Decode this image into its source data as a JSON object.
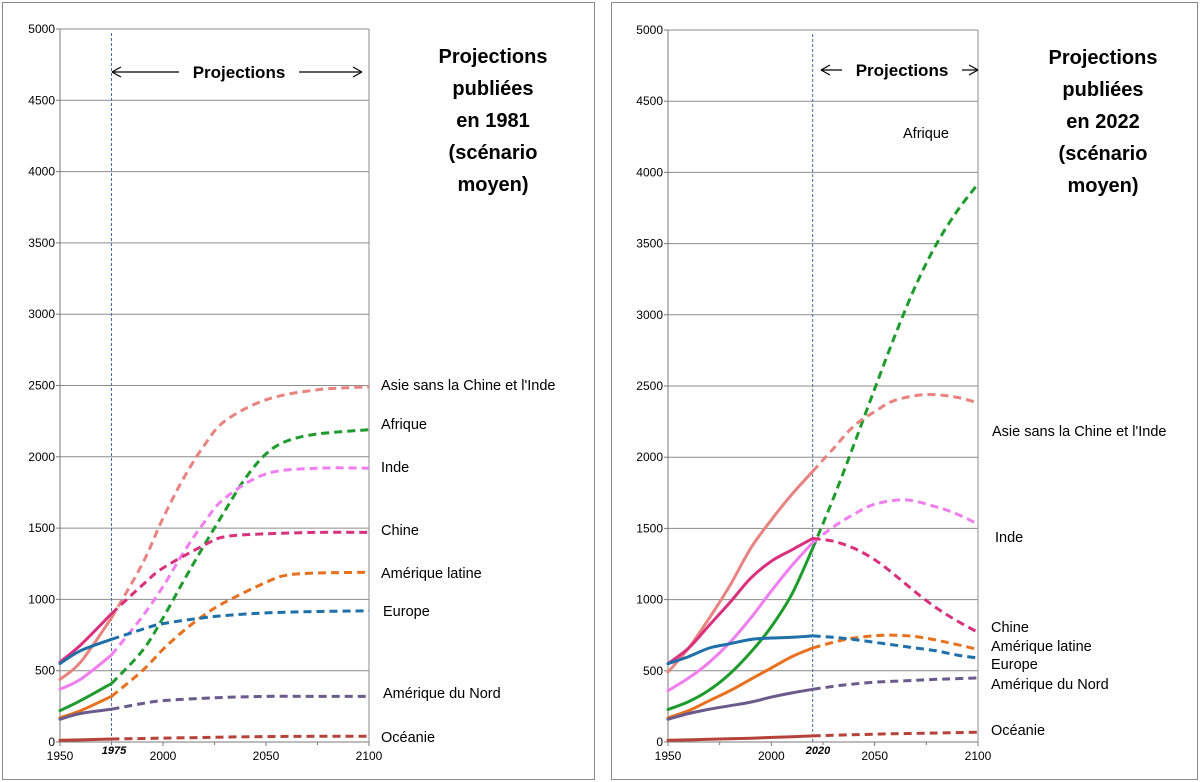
{
  "chart_data": [
    {
      "type": "line",
      "title": "Projections publiées en 1981 (scénario moyen)",
      "title_lines": [
        "Projections",
        "publiées",
        "en 1981",
        "(scénario",
        "moyen)"
      ],
      "projection_label": "Projections",
      "projection_start": 1975,
      "projection_start_label": "1975",
      "xlim": [
        1950,
        2100
      ],
      "ylim": [
        0,
        5000
      ],
      "x_ticks": [
        "1950",
        "2000",
        "2050",
        "2100"
      ],
      "y_ticks": [
        "0",
        "500",
        "1000",
        "1500",
        "2000",
        "2500",
        "3000",
        "3500",
        "4000",
        "4500",
        "5000"
      ],
      "grid": "horizontal",
      "series": [
        {
          "name": "Asie sans la Chine et l'Inde",
          "color": "#e8837f",
          "observed": [
            [
              1950,
              440
            ],
            [
              1960,
              560
            ],
            [
              1975,
              870
            ]
          ],
          "projected": [
            [
              1975,
              870
            ],
            [
              1990,
              1250
            ],
            [
              2000,
              1570
            ],
            [
              2010,
              1850
            ],
            [
              2020,
              2080
            ],
            [
              2030,
              2250
            ],
            [
              2050,
              2400
            ],
            [
              2075,
              2470
            ],
            [
              2100,
              2490
            ]
          ]
        },
        {
          "name": "Afrique",
          "color": "#1e9b2d",
          "observed": [
            [
              1950,
              220
            ],
            [
              1960,
              290
            ],
            [
              1975,
              410
            ]
          ],
          "projected": [
            [
              1975,
              410
            ],
            [
              1990,
              640
            ],
            [
              2000,
              870
            ],
            [
              2010,
              1130
            ],
            [
              2020,
              1380
            ],
            [
              2030,
              1620
            ],
            [
              2040,
              1850
            ],
            [
              2050,
              2020
            ],
            [
              2060,
              2110
            ],
            [
              2075,
              2160
            ],
            [
              2100,
              2190
            ]
          ]
        },
        {
          "name": "Inde",
          "color": "#f07ef0",
          "observed": [
            [
              1950,
              370
            ],
            [
              1960,
              440
            ],
            [
              1975,
              610
            ]
          ],
          "projected": [
            [
              1975,
              610
            ],
            [
              1990,
              880
            ],
            [
              2000,
              1090
            ],
            [
              2010,
              1330
            ],
            [
              2020,
              1540
            ],
            [
              2030,
              1710
            ],
            [
              2050,
              1880
            ],
            [
              2075,
              1920
            ],
            [
              2100,
              1920
            ]
          ]
        },
        {
          "name": "Chine",
          "color": "#d9317e",
          "observed": [
            [
              1950,
              560
            ],
            [
              1960,
              680
            ],
            [
              1975,
              900
            ]
          ],
          "projected": [
            [
              1975,
              900
            ],
            [
              1990,
              1100
            ],
            [
              2000,
              1220
            ],
            [
              2020,
              1380
            ],
            [
              2030,
              1440
            ],
            [
              2050,
              1460
            ],
            [
              2075,
              1470
            ],
            [
              2100,
              1470
            ]
          ]
        },
        {
          "name": "Amérique latine",
          "color": "#e8701e",
          "observed": [
            [
              1950,
              170
            ],
            [
              1960,
              220
            ],
            [
              1975,
              320
            ]
          ],
          "projected": [
            [
              1975,
              320
            ],
            [
              1990,
              500
            ],
            [
              2000,
              650
            ],
            [
              2010,
              780
            ],
            [
              2020,
              890
            ],
            [
              2030,
              980
            ],
            [
              2050,
              1120
            ],
            [
              2060,
              1170
            ],
            [
              2075,
              1185
            ],
            [
              2100,
              1190
            ]
          ]
        },
        {
          "name": "Europe",
          "color": "#1f6fa8",
          "observed": [
            [
              1950,
              550
            ],
            [
              1960,
              640
            ],
            [
              1975,
              720
            ]
          ],
          "projected": [
            [
              1975,
              720
            ],
            [
              1990,
              790
            ],
            [
              2000,
              830
            ],
            [
              2025,
              880
            ],
            [
              2050,
              905
            ],
            [
              2075,
              915
            ],
            [
              2100,
              920
            ]
          ]
        },
        {
          "name": "Amérique du Nord",
          "color": "#6b5a8c",
          "observed": [
            [
              1950,
              160
            ],
            [
              1960,
              200
            ],
            [
              1975,
              230
            ]
          ],
          "projected": [
            [
              1975,
              230
            ],
            [
              1990,
              270
            ],
            [
              2000,
              290
            ],
            [
              2025,
              310
            ],
            [
              2050,
              320
            ],
            [
              2075,
              320
            ],
            [
              2100,
              320
            ]
          ]
        },
        {
          "name": "Océanie",
          "color": "#b5433a",
          "observed": [
            [
              1950,
              12
            ],
            [
              1960,
              15
            ],
            [
              1975,
              21
            ]
          ],
          "projected": [
            [
              1975,
              21
            ],
            [
              2000,
              27
            ],
            [
              2025,
              33
            ],
            [
              2050,
              38
            ],
            [
              2075,
              40
            ],
            [
              2100,
              40
            ]
          ]
        }
      ]
    },
    {
      "type": "line",
      "title": "Projections publiées en 2022 (scénario moyen)",
      "title_lines": [
        "Projections",
        "publiées",
        "en 2022",
        "(scénario",
        "moyen)"
      ],
      "projection_label": "Projections",
      "projection_start": 2020,
      "projection_start_label": "2020",
      "xlim": [
        1950,
        2100
      ],
      "ylim": [
        0,
        5000
      ],
      "x_ticks": [
        "1950",
        "2000",
        "2050",
        "2100"
      ],
      "y_ticks": [
        "0",
        "500",
        "1000",
        "1500",
        "2000",
        "2500",
        "3000",
        "3500",
        "4000",
        "4500",
        "5000"
      ],
      "grid": "horizontal",
      "series": [
        {
          "name": "Afrique",
          "color": "#1e9b2d",
          "observed": [
            [
              1950,
              228
            ],
            [
              1960,
              284
            ],
            [
              1970,
              365
            ],
            [
              1980,
              480
            ],
            [
              1990,
              630
            ],
            [
              2000,
              810
            ],
            [
              2010,
              1040
            ],
            [
              2020,
              1360
            ]
          ],
          "projected": [
            [
              2020,
              1360
            ],
            [
              2030,
              1710
            ],
            [
              2040,
              2090
            ],
            [
              2050,
              2480
            ],
            [
              2060,
              2860
            ],
            [
              2070,
              3210
            ],
            [
              2080,
              3500
            ],
            [
              2090,
              3730
            ],
            [
              2100,
              3920
            ]
          ]
        },
        {
          "name": "Asie sans la Chine et l'Inde",
          "color": "#e8837f",
          "observed": [
            [
              1950,
              490
            ],
            [
              1960,
              660
            ],
            [
              1970,
              870
            ],
            [
              1980,
              1100
            ],
            [
              1990,
              1360
            ],
            [
              2000,
              1560
            ],
            [
              2010,
              1740
            ],
            [
              2020,
              1900
            ]
          ],
          "projected": [
            [
              2020,
              1900
            ],
            [
              2030,
              2060
            ],
            [
              2040,
              2220
            ],
            [
              2050,
              2320
            ],
            [
              2060,
              2400
            ],
            [
              2075,
              2440
            ],
            [
              2090,
              2420
            ],
            [
              2100,
              2380
            ]
          ]
        },
        {
          "name": "Inde",
          "color": "#f07ef0",
          "observed": [
            [
              1950,
              360
            ],
            [
              1960,
              450
            ],
            [
              1970,
              560
            ],
            [
              1980,
              700
            ],
            [
              1990,
              870
            ],
            [
              2000,
              1060
            ],
            [
              2010,
              1240
            ],
            [
              2020,
              1400
            ]
          ],
          "projected": [
            [
              2020,
              1400
            ],
            [
              2030,
              1510
            ],
            [
              2040,
              1600
            ],
            [
              2050,
              1670
            ],
            [
              2065,
              1700
            ],
            [
              2080,
              1650
            ],
            [
              2090,
              1600
            ],
            [
              2100,
              1530
            ]
          ]
        },
        {
          "name": "Chine",
          "color": "#d9317e",
          "observed": [
            [
              1950,
              550
            ],
            [
              1960,
              660
            ],
            [
              1970,
              820
            ],
            [
              1980,
              980
            ],
            [
              1990,
              1150
            ],
            [
              2000,
              1270
            ],
            [
              2010,
              1350
            ],
            [
              2020,
              1430
            ]
          ],
          "projected": [
            [
              2020,
              1430
            ],
            [
              2030,
              1410
            ],
            [
              2040,
              1360
            ],
            [
              2050,
              1280
            ],
            [
              2060,
              1170
            ],
            [
              2070,
              1050
            ],
            [
              2080,
              940
            ],
            [
              2090,
              850
            ],
            [
              2100,
              770
            ]
          ]
        },
        {
          "name": "Amérique latine",
          "color": "#e8701e",
          "observed": [
            [
              1950,
              170
            ],
            [
              1960,
              220
            ],
            [
              1970,
              290
            ],
            [
              1980,
              360
            ],
            [
              1990,
              440
            ],
            [
              2000,
              520
            ],
            [
              2010,
              600
            ],
            [
              2020,
              660
            ]
          ],
          "projected": [
            [
              2020,
              660
            ],
            [
              2030,
              700
            ],
            [
              2040,
              730
            ],
            [
              2055,
              750
            ],
            [
              2070,
              740
            ],
            [
              2085,
              700
            ],
            [
              2100,
              650
            ]
          ]
        },
        {
          "name": "Europe",
          "color": "#1f6fa8",
          "observed": [
            [
              1950,
              550
            ],
            [
              1960,
              600
            ],
            [
              1970,
              660
            ],
            [
              1980,
              690
            ],
            [
              1990,
              720
            ],
            [
              2000,
              730
            ],
            [
              2010,
              735
            ],
            [
              2020,
              745
            ]
          ],
          "projected": [
            [
              2020,
              745
            ],
            [
              2030,
              735
            ],
            [
              2040,
              720
            ],
            [
              2050,
              700
            ],
            [
              2060,
              680
            ],
            [
              2070,
              660
            ],
            [
              2080,
              640
            ],
            [
              2090,
              610
            ],
            [
              2100,
              590
            ]
          ]
        },
        {
          "name": "Amérique du Nord",
          "color": "#6b5a8c",
          "observed": [
            [
              1950,
              160
            ],
            [
              1960,
              200
            ],
            [
              1970,
              230
            ],
            [
              1980,
              255
            ],
            [
              1990,
              280
            ],
            [
              2000,
              315
            ],
            [
              2010,
              345
            ],
            [
              2020,
              370
            ]
          ],
          "projected": [
            [
              2020,
              370
            ],
            [
              2035,
              400
            ],
            [
              2050,
              420
            ],
            [
              2065,
              430
            ],
            [
              2080,
              440
            ],
            [
              2100,
              450
            ]
          ]
        },
        {
          "name": "Océanie",
          "color": "#b5433a",
          "observed": [
            [
              1950,
              12
            ],
            [
              1970,
              19
            ],
            [
              1990,
              27
            ],
            [
              2010,
              37
            ],
            [
              2020,
              43
            ]
          ],
          "projected": [
            [
              2020,
              43
            ],
            [
              2040,
              51
            ],
            [
              2060,
              58
            ],
            [
              2080,
              63
            ],
            [
              2100,
              69
            ]
          ]
        }
      ]
    }
  ]
}
